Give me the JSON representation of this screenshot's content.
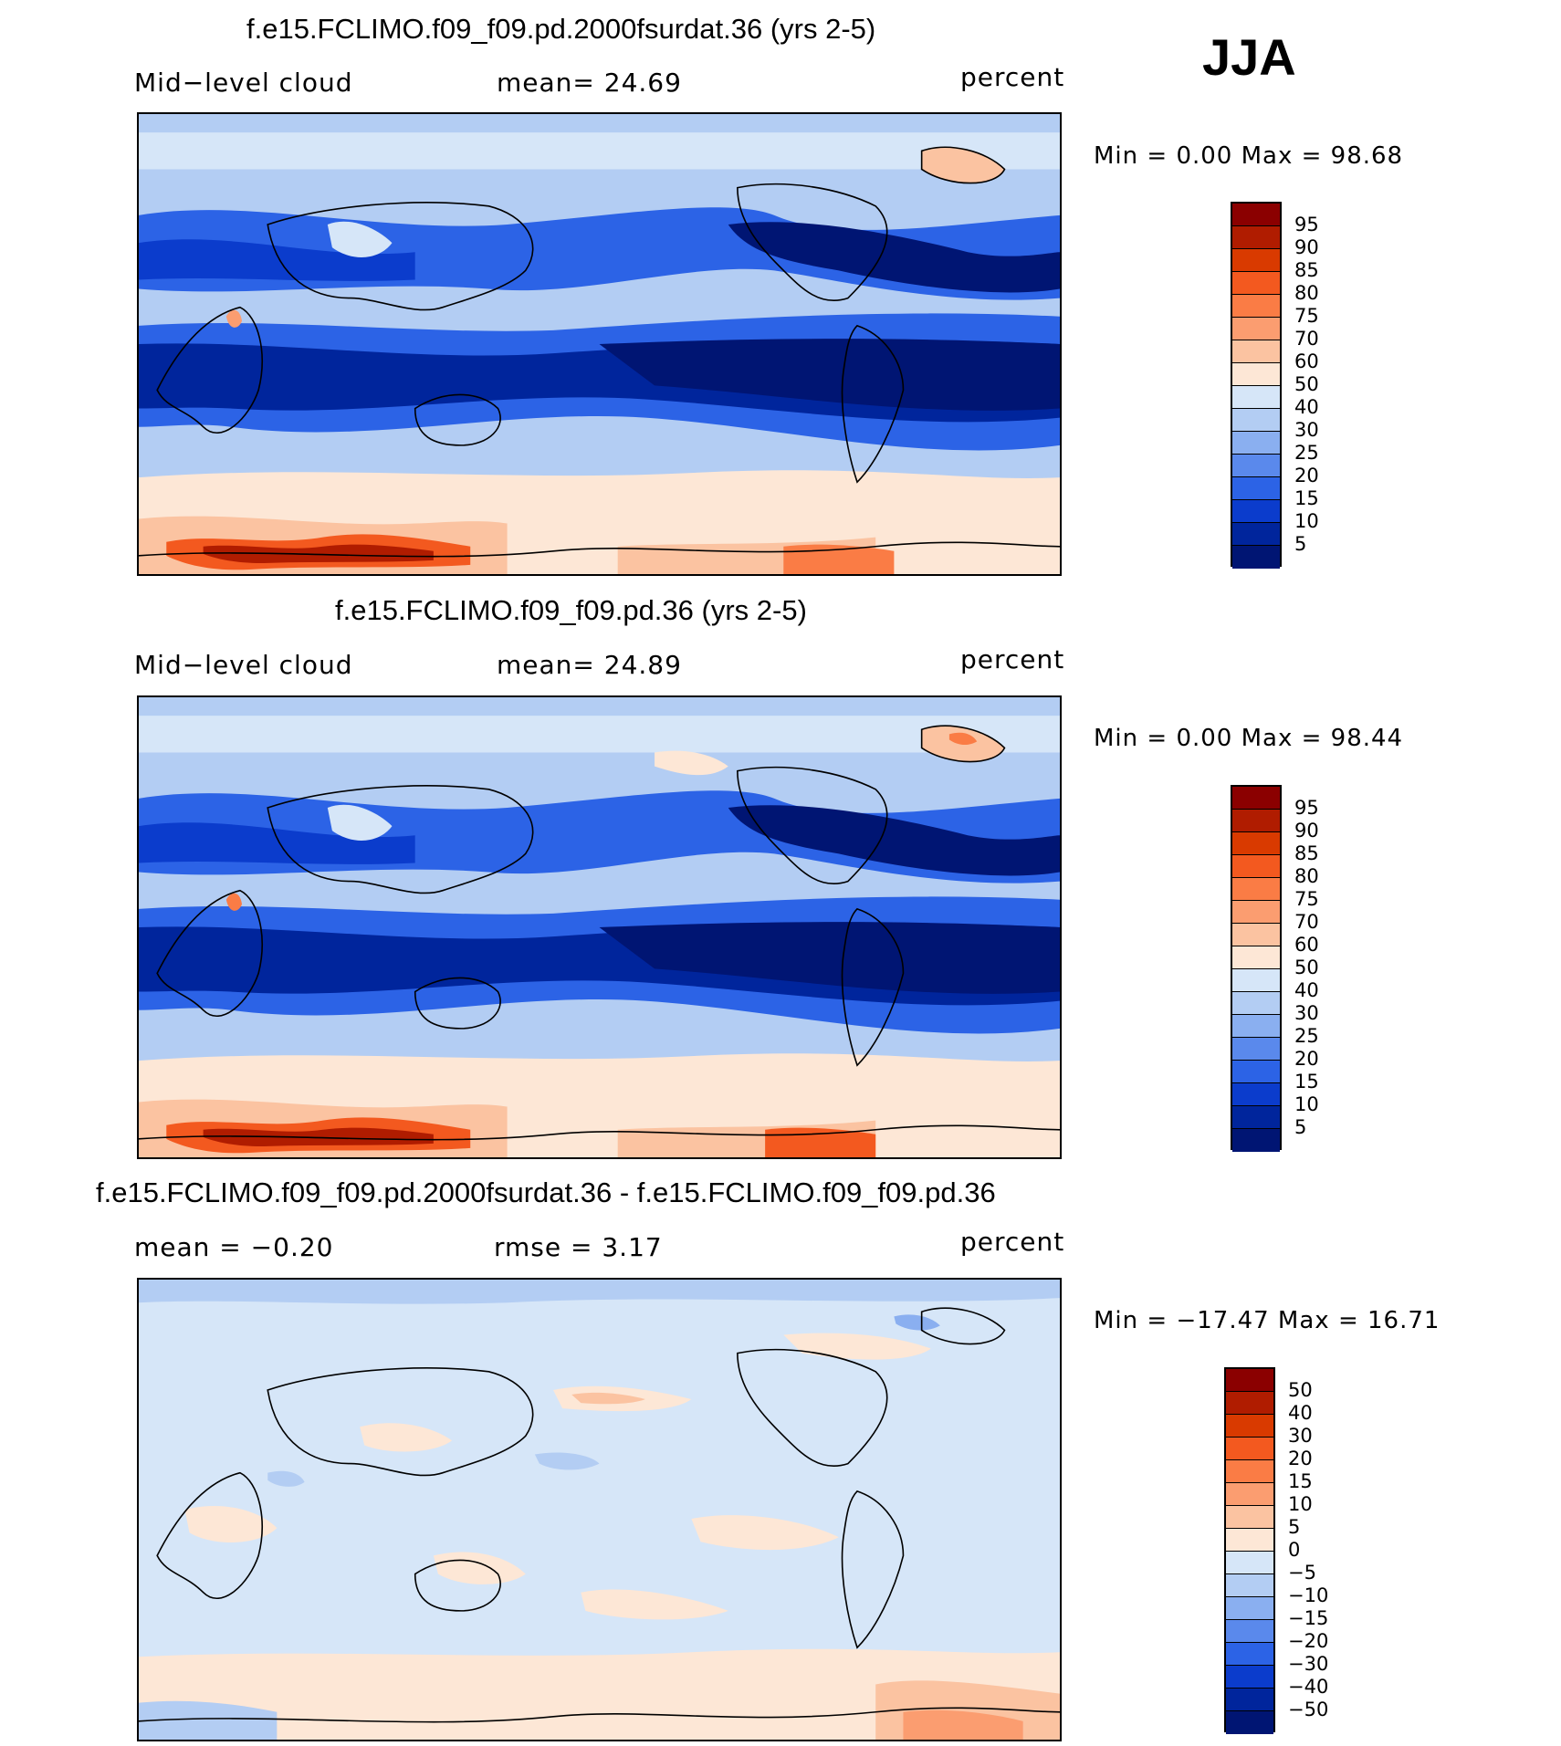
{
  "season": "JJA",
  "panels": [
    {
      "title": "f.e15.FCLIMO.f09_f09.pd.2000fsurdat.36 (yrs 2-5)",
      "left_label": "Mid−level cloud",
      "center_label": "mean=   24.69",
      "right_label": "percent",
      "minmax": "Min =     0.00 Max =   98.68",
      "colorbar": {
        "labels": [
          "95",
          "90",
          "85",
          "80",
          "75",
          "70",
          "60",
          "50",
          "40",
          "30",
          "25",
          "20",
          "15",
          "10",
          "5"
        ],
        "colors": [
          "#8b0000",
          "#b01c00",
          "#d93a00",
          "#f3591f",
          "#fa7c45",
          "#fb9d70",
          "#fbc3a1",
          "#fde7d6",
          "#d6e6f8",
          "#b3cdf3",
          "#8aaff0",
          "#5a89ec",
          "#2c63e6",
          "#0b3ccc",
          "#00259c",
          "#001573"
        ]
      }
    },
    {
      "title": "f.e15.FCLIMO.f09_f09.pd.36 (yrs 2-5)",
      "left_label": "Mid−level cloud",
      "center_label": "mean=   24.89",
      "right_label": "percent",
      "minmax": "Min =     0.00 Max =   98.44",
      "colorbar": {
        "labels": [
          "95",
          "90",
          "85",
          "80",
          "75",
          "70",
          "60",
          "50",
          "40",
          "30",
          "25",
          "20",
          "15",
          "10",
          "5"
        ],
        "colors": [
          "#8b0000",
          "#b01c00",
          "#d93a00",
          "#f3591f",
          "#fa7c45",
          "#fb9d70",
          "#fbc3a1",
          "#fde7d6",
          "#d6e6f8",
          "#b3cdf3",
          "#8aaff0",
          "#5a89ec",
          "#2c63e6",
          "#0b3ccc",
          "#00259c",
          "#001573"
        ]
      }
    },
    {
      "title": "f.e15.FCLIMO.f09_f09.pd.2000fsurdat.36 - f.e15.FCLIMO.f09_f09.pd.36",
      "left_label": "mean =   −0.20",
      "center_label": "rmse =     3.17",
      "right_label": "percent",
      "minmax": "Min = −17.47 Max =   16.71",
      "colorbar": {
        "labels": [
          "50",
          "40",
          "30",
          "20",
          "15",
          "10",
          "5",
          "0",
          "−5",
          "−10",
          "−15",
          "−20",
          "−30",
          "−40",
          "−50"
        ],
        "colors": [
          "#8b0000",
          "#b01c00",
          "#d93a00",
          "#f3591f",
          "#fa7c45",
          "#fb9d70",
          "#fbc3a1",
          "#fde7d6",
          "#d6e6f8",
          "#b3cdf3",
          "#8aaff0",
          "#5a89ec",
          "#2c63e6",
          "#0b3ccc",
          "#00259c",
          "#001573"
        ]
      }
    }
  ]
}
